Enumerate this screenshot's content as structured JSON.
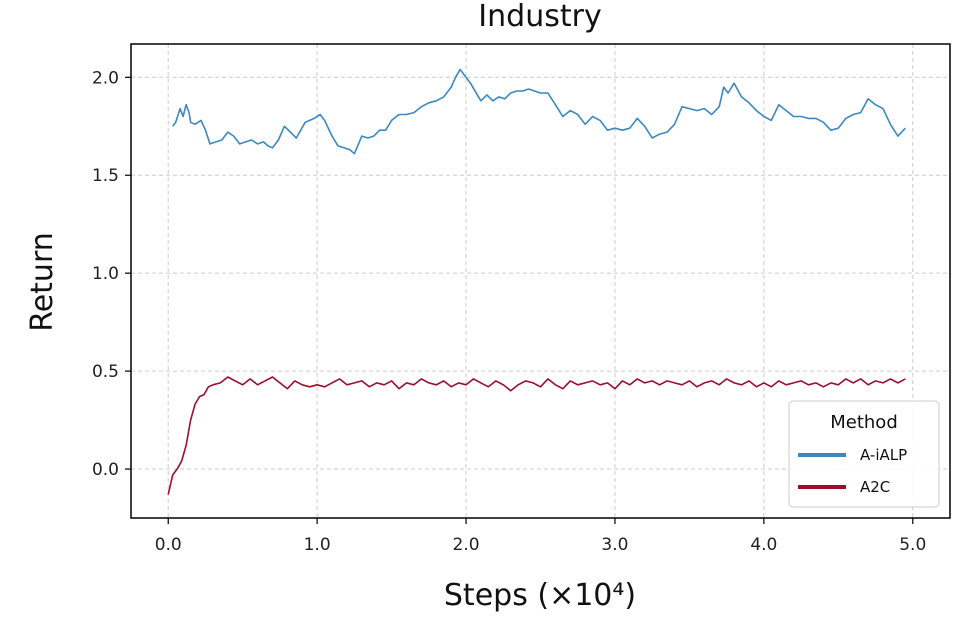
{
  "chart_data": {
    "type": "line",
    "title": "Industry",
    "xlabel": "Steps (×10⁴)",
    "ylabel": "Return",
    "xlim": [
      -0.25,
      5.25
    ],
    "ylim": [
      -0.25,
      2.17
    ],
    "xticks": [
      0.0,
      1.0,
      2.0,
      3.0,
      4.0,
      5.0
    ],
    "xtick_labels": [
      "0.0",
      "1.0",
      "2.0",
      "3.0",
      "4.0",
      "5.0"
    ],
    "yticks": [
      0.0,
      0.5,
      1.0,
      1.5,
      2.0
    ],
    "ytick_labels": [
      "0.0",
      "0.5",
      "1.0",
      "1.5",
      "2.0"
    ],
    "grid": true,
    "legend": {
      "title": "Method",
      "position": "lower-right"
    },
    "series": [
      {
        "name": "A-iALP",
        "color": "#3a89c2",
        "x": [
          0.03,
          0.05,
          0.08,
          0.1,
          0.12,
          0.14,
          0.15,
          0.18,
          0.22,
          0.25,
          0.28,
          0.32,
          0.36,
          0.4,
          0.44,
          0.48,
          0.52,
          0.56,
          0.6,
          0.64,
          0.67,
          0.7,
          0.74,
          0.78,
          0.82,
          0.86,
          0.92,
          0.98,
          1.02,
          1.05,
          1.1,
          1.14,
          1.18,
          1.22,
          1.25,
          1.3,
          1.34,
          1.38,
          1.42,
          1.46,
          1.5,
          1.55,
          1.6,
          1.65,
          1.7,
          1.75,
          1.8,
          1.85,
          1.9,
          1.93,
          1.96,
          1.98,
          2.0,
          2.03,
          2.06,
          2.1,
          2.14,
          2.18,
          2.22,
          2.26,
          2.3,
          2.34,
          2.38,
          2.42,
          2.46,
          2.5,
          2.55,
          2.6,
          2.65,
          2.7,
          2.75,
          2.8,
          2.85,
          2.9,
          2.95,
          3.0,
          3.05,
          3.1,
          3.15,
          3.2,
          3.25,
          3.3,
          3.35,
          3.4,
          3.45,
          3.5,
          3.55,
          3.6,
          3.65,
          3.7,
          3.73,
          3.76,
          3.8,
          3.85,
          3.9,
          3.95,
          4.0,
          4.05,
          4.1,
          4.15,
          4.2,
          4.25,
          4.3,
          4.35,
          4.4,
          4.45,
          4.5,
          4.55,
          4.6,
          4.65,
          4.7,
          4.75,
          4.8,
          4.85,
          4.9,
          4.95
        ],
        "y": [
          1.75,
          1.77,
          1.84,
          1.8,
          1.86,
          1.82,
          1.77,
          1.76,
          1.78,
          1.73,
          1.66,
          1.67,
          1.68,
          1.72,
          1.7,
          1.66,
          1.67,
          1.68,
          1.66,
          1.67,
          1.65,
          1.64,
          1.68,
          1.75,
          1.72,
          1.69,
          1.77,
          1.79,
          1.81,
          1.78,
          1.7,
          1.65,
          1.64,
          1.63,
          1.61,
          1.7,
          1.69,
          1.7,
          1.73,
          1.73,
          1.78,
          1.81,
          1.81,
          1.82,
          1.85,
          1.87,
          1.88,
          1.9,
          1.95,
          2.0,
          2.04,
          2.02,
          2.0,
          1.97,
          1.93,
          1.88,
          1.91,
          1.88,
          1.9,
          1.89,
          1.92,
          1.93,
          1.93,
          1.94,
          1.93,
          1.92,
          1.92,
          1.86,
          1.8,
          1.83,
          1.81,
          1.76,
          1.8,
          1.78,
          1.73,
          1.74,
          1.73,
          1.74,
          1.79,
          1.75,
          1.69,
          1.71,
          1.72,
          1.76,
          1.85,
          1.84,
          1.83,
          1.84,
          1.81,
          1.85,
          1.95,
          1.92,
          1.97,
          1.9,
          1.87,
          1.83,
          1.8,
          1.78,
          1.86,
          1.83,
          1.8,
          1.8,
          1.79,
          1.79,
          1.77,
          1.73,
          1.74,
          1.79,
          1.81,
          1.82,
          1.89,
          1.86,
          1.84,
          1.76,
          1.7,
          1.74
        ]
      },
      {
        "name": "A2C",
        "color": "#9b0f2d",
        "x": [
          0.0,
          0.03,
          0.06,
          0.09,
          0.12,
          0.15,
          0.18,
          0.21,
          0.24,
          0.27,
          0.3,
          0.35,
          0.4,
          0.45,
          0.5,
          0.55,
          0.6,
          0.65,
          0.7,
          0.75,
          0.8,
          0.85,
          0.9,
          0.95,
          1.0,
          1.05,
          1.1,
          1.15,
          1.2,
          1.25,
          1.3,
          1.35,
          1.4,
          1.45,
          1.5,
          1.55,
          1.6,
          1.65,
          1.7,
          1.75,
          1.8,
          1.85,
          1.9,
          1.95,
          2.0,
          2.05,
          2.1,
          2.15,
          2.2,
          2.25,
          2.3,
          2.35,
          2.4,
          2.45,
          2.5,
          2.55,
          2.6,
          2.65,
          2.7,
          2.75,
          2.8,
          2.85,
          2.9,
          2.95,
          3.0,
          3.05,
          3.1,
          3.15,
          3.2,
          3.25,
          3.3,
          3.35,
          3.4,
          3.45,
          3.5,
          3.55,
          3.6,
          3.65,
          3.7,
          3.75,
          3.8,
          3.85,
          3.9,
          3.95,
          4.0,
          4.05,
          4.1,
          4.15,
          4.2,
          4.25,
          4.3,
          4.35,
          4.4,
          4.45,
          4.5,
          4.55,
          4.6,
          4.65,
          4.7,
          4.75,
          4.8,
          4.85,
          4.9,
          4.95
        ],
        "y": [
          -0.13,
          -0.03,
          0.0,
          0.04,
          0.12,
          0.25,
          0.33,
          0.37,
          0.38,
          0.42,
          0.43,
          0.44,
          0.47,
          0.45,
          0.43,
          0.46,
          0.43,
          0.45,
          0.47,
          0.44,
          0.41,
          0.45,
          0.43,
          0.42,
          0.43,
          0.42,
          0.44,
          0.46,
          0.43,
          0.44,
          0.45,
          0.42,
          0.44,
          0.43,
          0.45,
          0.41,
          0.44,
          0.43,
          0.46,
          0.44,
          0.43,
          0.45,
          0.42,
          0.44,
          0.43,
          0.46,
          0.44,
          0.42,
          0.45,
          0.43,
          0.4,
          0.43,
          0.45,
          0.44,
          0.42,
          0.46,
          0.43,
          0.41,
          0.45,
          0.43,
          0.44,
          0.45,
          0.43,
          0.44,
          0.41,
          0.45,
          0.43,
          0.46,
          0.44,
          0.45,
          0.43,
          0.45,
          0.44,
          0.43,
          0.45,
          0.42,
          0.44,
          0.45,
          0.43,
          0.46,
          0.44,
          0.43,
          0.45,
          0.42,
          0.44,
          0.42,
          0.45,
          0.43,
          0.44,
          0.45,
          0.43,
          0.44,
          0.42,
          0.44,
          0.43,
          0.46,
          0.44,
          0.46,
          0.43,
          0.45,
          0.44,
          0.46,
          0.44,
          0.46
        ]
      }
    ]
  }
}
